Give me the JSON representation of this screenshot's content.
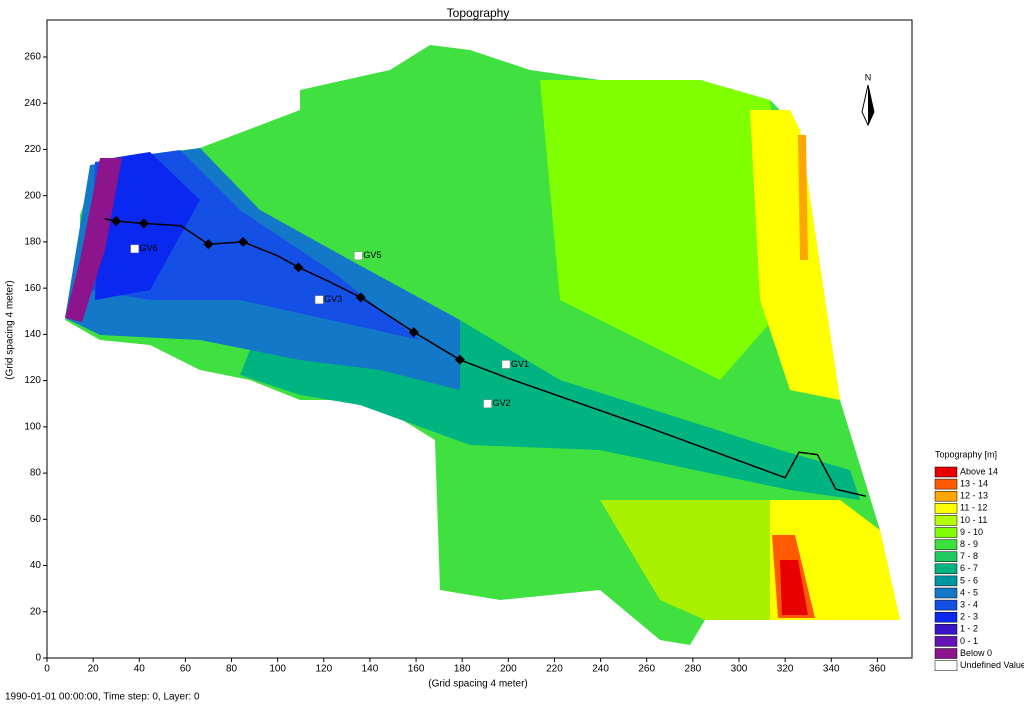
{
  "title": "Topography",
  "xlabel": "(Grid spacing 4 meter)",
  "ylabel": "(Grid spacing 4 meter)",
  "status": "1990-01-01 00:00:00, Time step: 0, Layer: 0",
  "compass": "N",
  "xlim": [
    0,
    375
  ],
  "ylim": [
    0,
    276
  ],
  "xticks": [
    0,
    20,
    40,
    60,
    80,
    100,
    120,
    140,
    160,
    180,
    200,
    220,
    240,
    260,
    280,
    300,
    320,
    340,
    360
  ],
  "yticks": [
    0,
    20,
    40,
    60,
    80,
    100,
    120,
    140,
    160,
    180,
    200,
    220,
    240,
    260
  ],
  "profile": {
    "x": [
      25,
      30,
      42,
      58,
      70,
      85,
      100,
      109,
      122,
      136,
      159,
      179,
      200,
      260,
      320,
      326,
      334,
      342,
      355
    ],
    "y": [
      190,
      189,
      188,
      187,
      179,
      180,
      174,
      169,
      163,
      156,
      141,
      129,
      121,
      100,
      78,
      89,
      88,
      73,
      70
    ]
  },
  "nodes": {
    "x": [
      30,
      42,
      70,
      85,
      109,
      136,
      159,
      179
    ],
    "y": [
      189,
      188,
      179,
      180,
      169,
      156,
      141,
      129
    ]
  },
  "stations": [
    {
      "label": "GV1",
      "x": 199,
      "y": 127
    },
    {
      "label": "GV2",
      "x": 191,
      "y": 110
    },
    {
      "label": "GV3",
      "x": 118,
      "y": 155
    },
    {
      "label": "GV5",
      "x": 135,
      "y": 174
    },
    {
      "label": "GV6",
      "x": 38,
      "y": 177
    }
  ],
  "legend": {
    "title": "Topography [m]",
    "items": [
      {
        "label": "Above 14",
        "color": "#e80000"
      },
      {
        "label": "13 - 14",
        "color": "#ff5a00"
      },
      {
        "label": "12 - 13",
        "color": "#ffa500"
      },
      {
        "label": "11 - 12",
        "color": "#ffff00"
      },
      {
        "label": "10 - 11",
        "color": "#b4ff00"
      },
      {
        "label": "9 - 10",
        "color": "#7fff00"
      },
      {
        "label": "8 -  9",
        "color": "#3ce03c"
      },
      {
        "label": "7 -  8",
        "color": "#20c860"
      },
      {
        "label": "6 -  7",
        "color": "#00b482"
      },
      {
        "label": "5 -  6",
        "color": "#0096a0"
      },
      {
        "label": "4 -  5",
        "color": "#1478c8"
      },
      {
        "label": "3 -  4",
        "color": "#1450e6"
      },
      {
        "label": "2 -  3",
        "color": "#0a28f0"
      },
      {
        "label": "1 -  2",
        "color": "#3c14c8"
      },
      {
        "label": "0 -  1",
        "color": "#6414b4"
      },
      {
        "label": "Below  0",
        "color": "#8c148c"
      },
      {
        "label": "Undefined Value",
        "color": "#ffffff"
      }
    ]
  }
}
